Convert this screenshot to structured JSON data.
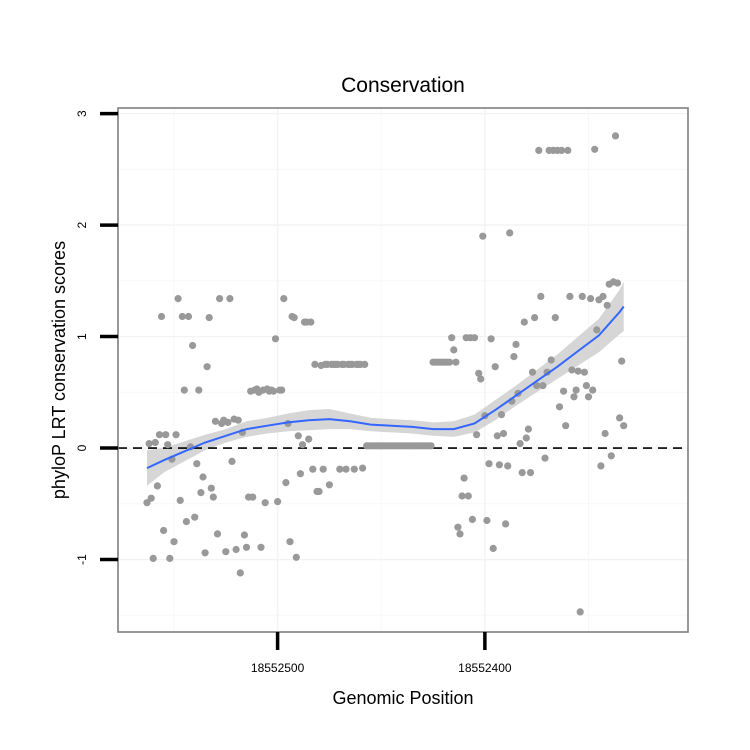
{
  "chart_data": {
    "type": "scatter",
    "title": "Conservation",
    "xlabel": "Genomic Position",
    "ylabel": "phyloP LRT conservation scores",
    "x_axis_reversed": true,
    "xlim": [
      18552577,
      18552302
    ],
    "ylim": [
      -1.65,
      3.05
    ],
    "grid": true,
    "background": "white",
    "reference_line": {
      "y": 0,
      "style": "dashed",
      "color": "#000000"
    },
    "x_ticks": [
      {
        "value": 18552500,
        "label": "18552500"
      },
      {
        "value": 18552400,
        "label": "18552400"
      }
    ],
    "y_ticks": [
      {
        "value": -1,
        "label": "-1"
      },
      {
        "value": 0,
        "label": "0"
      },
      {
        "value": 1,
        "label": "1"
      },
      {
        "value": 2,
        "label": "2"
      },
      {
        "value": 3,
        "label": "3"
      }
    ],
    "point_color": "#999999",
    "points": [
      [
        18552563,
        -0.49
      ],
      [
        18552562,
        0.04
      ],
      [
        18552561,
        -0.45
      ],
      [
        18552560,
        -0.99
      ],
      [
        18552559,
        0.05
      ],
      [
        18552558,
        -0.34
      ],
      [
        18552557,
        0.12
      ],
      [
        18552556,
        1.18
      ],
      [
        18552555,
        -0.74
      ],
      [
        18552554,
        0.12
      ],
      [
        18552553,
        0.03
      ],
      [
        18552552,
        -0.99
      ],
      [
        18552551,
        -0.1
      ],
      [
        18552550,
        -0.84
      ],
      [
        18552549,
        0.12
      ],
      [
        18552548,
        1.34
      ],
      [
        18552547,
        -0.47
      ],
      [
        18552546,
        1.18
      ],
      [
        18552545,
        0.52
      ],
      [
        18552544,
        -0.66
      ],
      [
        18552543,
        1.18
      ],
      [
        18552542,
        0.01
      ],
      [
        18552541,
        0.92
      ],
      [
        18552540,
        -0.62
      ],
      [
        18552539,
        -0.14
      ],
      [
        18552538,
        0.52
      ],
      [
        18552537,
        -0.4
      ],
      [
        18552536,
        -0.26
      ],
      [
        18552535,
        -0.94
      ],
      [
        18552534,
        0.73
      ],
      [
        18552533,
        1.17
      ],
      [
        18552532,
        -0.36
      ],
      [
        18552531,
        -0.44
      ],
      [
        18552530,
        0.24
      ],
      [
        18552529,
        -0.77
      ],
      [
        18552528,
        1.34
      ],
      [
        18552527,
        0.22
      ],
      [
        18552526,
        0.25
      ],
      [
        18552525,
        -0.93
      ],
      [
        18552524,
        0.23
      ],
      [
        18552523,
        1.34
      ],
      [
        18552522,
        -0.12
      ],
      [
        18552521,
        0.26
      ],
      [
        18552520,
        -0.91
      ],
      [
        18552519,
        0.25
      ],
      [
        18552518,
        -1.12
      ],
      [
        18552517,
        0.14
      ],
      [
        18552516,
        -0.78
      ],
      [
        18552515,
        -0.89
      ],
      [
        18552514,
        -0.44
      ],
      [
        18552513,
        0.51
      ],
      [
        18552512,
        -0.44
      ],
      [
        18552511,
        0.52
      ],
      [
        18552510,
        0.53
      ],
      [
        18552509,
        0.5
      ],
      [
        18552508,
        -0.89
      ],
      [
        18552507,
        0.52
      ],
      [
        18552506,
        -0.49
      ],
      [
        18552505,
        0.53
      ],
      [
        18552504,
        0.51
      ],
      [
        18552503,
        0.52
      ],
      [
        18552502,
        0.51
      ],
      [
        18552501,
        0.98
      ],
      [
        18552500,
        -0.48
      ],
      [
        18552499,
        0.52
      ],
      [
        18552498,
        0.52
      ],
      [
        18552497,
        1.34
      ],
      [
        18552496,
        -0.31
      ],
      [
        18552495,
        0.22
      ],
      [
        18552494,
        -0.84
      ],
      [
        18552493,
        1.18
      ],
      [
        18552492,
        1.17
      ],
      [
        18552491,
        -0.98
      ],
      [
        18552490,
        0.11
      ],
      [
        18552489,
        -0.23
      ],
      [
        18552488,
        0.03
      ],
      [
        18552487,
        1.13
      ],
      [
        18552486,
        1.13
      ],
      [
        18552485,
        0.08
      ],
      [
        18552484,
        1.13
      ],
      [
        18552483,
        -0.19
      ],
      [
        18552482,
        0.75
      ],
      [
        18552481,
        -0.39
      ],
      [
        18552480,
        -0.39
      ],
      [
        18552479,
        0.74
      ],
      [
        18552478,
        -0.19
      ],
      [
        18552477,
        0.75
      ],
      [
        18552476,
        0.75
      ],
      [
        18552475,
        -0.33
      ],
      [
        18552474,
        0.75
      ],
      [
        18552473,
        0.75
      ],
      [
        18552472,
        0.75
      ],
      [
        18552471,
        0.75
      ],
      [
        18552470,
        -0.19
      ],
      [
        18552469,
        0.75
      ],
      [
        18552468,
        0.75
      ],
      [
        18552467,
        -0.19
      ],
      [
        18552466,
        0.75
      ],
      [
        18552465,
        0.75
      ],
      [
        18552464,
        0.75
      ],
      [
        18552463,
        -0.19
      ],
      [
        18552462,
        0.75
      ],
      [
        18552461,
        0.75
      ],
      [
        18552460,
        0.75
      ],
      [
        18552459,
        -0.18
      ],
      [
        18552458,
        0.75
      ],
      [
        18552457,
        0.02
      ],
      [
        18552456,
        0.02
      ],
      [
        18552455,
        0.02
      ],
      [
        18552454,
        0.02
      ],
      [
        18552453,
        0.02
      ],
      [
        18552452,
        0.02
      ],
      [
        18552451,
        0.02
      ],
      [
        18552450,
        0.02
      ],
      [
        18552449,
        0.02
      ],
      [
        18552448,
        0.02
      ],
      [
        18552447,
        0.02
      ],
      [
        18552446,
        0.02
      ],
      [
        18552445,
        0.02
      ],
      [
        18552444,
        0.02
      ],
      [
        18552443,
        0.02
      ],
      [
        18552442,
        0.02
      ],
      [
        18552441,
        0.02
      ],
      [
        18552440,
        0.02
      ],
      [
        18552439,
        0.02
      ],
      [
        18552438,
        0.02
      ],
      [
        18552437,
        0.02
      ],
      [
        18552436,
        0.02
      ],
      [
        18552435,
        0.02
      ],
      [
        18552434,
        0.02
      ],
      [
        18552433,
        0.02
      ],
      [
        18552432,
        0.02
      ],
      [
        18552431,
        0.02
      ],
      [
        18552430,
        0.02
      ],
      [
        18552429,
        0.02
      ],
      [
        18552428,
        0.02
      ],
      [
        18552427,
        0.02
      ],
      [
        18552426,
        0.02
      ],
      [
        18552425,
        0.77
      ],
      [
        18552424,
        0.77
      ],
      [
        18552423,
        0.77
      ],
      [
        18552422,
        0.77
      ],
      [
        18552421,
        0.77
      ],
      [
        18552420,
        0.77
      ],
      [
        18552419,
        0.77
      ],
      [
        18552418,
        0.77
      ],
      [
        18552417,
        0.77
      ],
      [
        18552416,
        0.99
      ],
      [
        18552415,
        0.88
      ],
      [
        18552414,
        0.77
      ],
      [
        18552413,
        -0.71
      ],
      [
        18552412,
        -0.77
      ],
      [
        18552411,
        -0.43
      ],
      [
        18552410,
        -0.27
      ],
      [
        18552409,
        0.99
      ],
      [
        18552408,
        -0.43
      ],
      [
        18552407,
        0.99
      ],
      [
        18552406,
        -0.64
      ],
      [
        18552405,
        0.99
      ],
      [
        18552404,
        0.12
      ],
      [
        18552403,
        0.67
      ],
      [
        18552402,
        0.62
      ],
      [
        18552401,
        1.9
      ],
      [
        18552400,
        0.29
      ],
      [
        18552399,
        -0.65
      ],
      [
        18552398,
        -0.14
      ],
      [
        18552397,
        0.98
      ],
      [
        18552396,
        -0.9
      ],
      [
        18552395,
        0.73
      ],
      [
        18552394,
        0.11
      ],
      [
        18552393,
        -0.15
      ],
      [
        18552392,
        0.3
      ],
      [
        18552391,
        0.13
      ],
      [
        18552390,
        -0.68
      ],
      [
        18552389,
        -0.16
      ],
      [
        18552388,
        1.93
      ],
      [
        18552387,
        0.42
      ],
      [
        18552386,
        0.82
      ],
      [
        18552385,
        0.93
      ],
      [
        18552384,
        0.49
      ],
      [
        18552383,
        0.04
      ],
      [
        18552382,
        -0.22
      ],
      [
        18552381,
        1.13
      ],
      [
        18552380,
        0.09
      ],
      [
        18552379,
        0.17
      ],
      [
        18552378,
        -0.22
      ],
      [
        18552377,
        0.68
      ],
      [
        18552376,
        1.17
      ],
      [
        18552375,
        0.56
      ],
      [
        18552374,
        2.67
      ],
      [
        18552373,
        1.36
      ],
      [
        18552372,
        0.56
      ],
      [
        18552371,
        -0.09
      ],
      [
        18552370,
        0.68
      ],
      [
        18552369,
        2.67
      ],
      [
        18552368,
        0.79
      ],
      [
        18552367,
        2.67
      ],
      [
        18552366,
        1.17
      ],
      [
        18552365,
        2.67
      ],
      [
        18552364,
        0.37
      ],
      [
        18552363,
        2.67
      ],
      [
        18552362,
        0.51
      ],
      [
        18552361,
        0.2
      ],
      [
        18552360,
        2.67
      ],
      [
        18552359,
        1.36
      ],
      [
        18552358,
        0.7
      ],
      [
        18552357,
        0.46
      ],
      [
        18552356,
        0.52
      ],
      [
        18552355,
        0.69
      ],
      [
        18552354,
        -1.47
      ],
      [
        18552353,
        1.36
      ],
      [
        18552352,
        0.68
      ],
      [
        18552351,
        0.56
      ],
      [
        18552350,
        0.46
      ],
      [
        18552349,
        1.34
      ],
      [
        18552348,
        0.52
      ],
      [
        18552347,
        2.68
      ],
      [
        18552346,
        1.06
      ],
      [
        18552345,
        1.33
      ],
      [
        18552344,
        -0.16
      ],
      [
        18552343,
        1.36
      ],
      [
        18552342,
        0.13
      ],
      [
        18552341,
        1.28
      ],
      [
        18552340,
        1.47
      ],
      [
        18552339,
        -0.07
      ],
      [
        18552338,
        1.49
      ],
      [
        18552337,
        2.8
      ],
      [
        18552336,
        1.48
      ],
      [
        18552335,
        0.27
      ],
      [
        18552334,
        0.78
      ],
      [
        18552333,
        0.2
      ]
    ],
    "smooth": {
      "color": "#3366FF",
      "ribbon_color": "#cccccc",
      "line": [
        [
          18552563,
          -0.18
        ],
        [
          18552555,
          -0.11
        ],
        [
          18552545,
          -0.03
        ],
        [
          18552535,
          0.05
        ],
        [
          18552525,
          0.11
        ],
        [
          18552515,
          0.17
        ],
        [
          18552505,
          0.2
        ],
        [
          18552495,
          0.23
        ],
        [
          18552485,
          0.25
        ],
        [
          18552475,
          0.26
        ],
        [
          18552465,
          0.24
        ],
        [
          18552455,
          0.21
        ],
        [
          18552445,
          0.2
        ],
        [
          18552435,
          0.19
        ],
        [
          18552425,
          0.17
        ],
        [
          18552415,
          0.17
        ],
        [
          18552405,
          0.22
        ],
        [
          18552395,
          0.34
        ],
        [
          18552385,
          0.47
        ],
        [
          18552375,
          0.6
        ],
        [
          18552365,
          0.73
        ],
        [
          18552355,
          0.87
        ],
        [
          18552345,
          1.01
        ],
        [
          18552335,
          1.22
        ],
        [
          18552333,
          1.27
        ]
      ],
      "lower": [
        [
          18552563,
          -0.34
        ],
        [
          18552555,
          -0.22
        ],
        [
          18552545,
          -0.12
        ],
        [
          18552535,
          -0.02
        ],
        [
          18552525,
          0.05
        ],
        [
          18552515,
          0.1
        ],
        [
          18552505,
          0.13
        ],
        [
          18552495,
          0.15
        ],
        [
          18552485,
          0.16
        ],
        [
          18552475,
          0.17
        ],
        [
          18552465,
          0.17
        ],
        [
          18552455,
          0.15
        ],
        [
          18552445,
          0.14
        ],
        [
          18552435,
          0.13
        ],
        [
          18552425,
          0.11
        ],
        [
          18552415,
          0.1
        ],
        [
          18552405,
          0.14
        ],
        [
          18552395,
          0.25
        ],
        [
          18552385,
          0.38
        ],
        [
          18552375,
          0.5
        ],
        [
          18552365,
          0.62
        ],
        [
          18552355,
          0.74
        ],
        [
          18552345,
          0.86
        ],
        [
          18552335,
          1.02
        ],
        [
          18552333,
          1.05
        ]
      ],
      "upper": [
        [
          18552563,
          -0.02
        ],
        [
          18552555,
          0.0
        ],
        [
          18552545,
          0.06
        ],
        [
          18552535,
          0.12
        ],
        [
          18552525,
          0.17
        ],
        [
          18552515,
          0.24
        ],
        [
          18552505,
          0.27
        ],
        [
          18552495,
          0.31
        ],
        [
          18552485,
          0.34
        ],
        [
          18552475,
          0.35
        ],
        [
          18552465,
          0.31
        ],
        [
          18552455,
          0.27
        ],
        [
          18552445,
          0.26
        ],
        [
          18552435,
          0.25
        ],
        [
          18552425,
          0.23
        ],
        [
          18552415,
          0.24
        ],
        [
          18552405,
          0.3
        ],
        [
          18552395,
          0.43
        ],
        [
          18552385,
          0.56
        ],
        [
          18552375,
          0.7
        ],
        [
          18552365,
          0.84
        ],
        [
          18552355,
          1.0
        ],
        [
          18552345,
          1.16
        ],
        [
          18552335,
          1.42
        ],
        [
          18552333,
          1.49
        ]
      ]
    }
  }
}
